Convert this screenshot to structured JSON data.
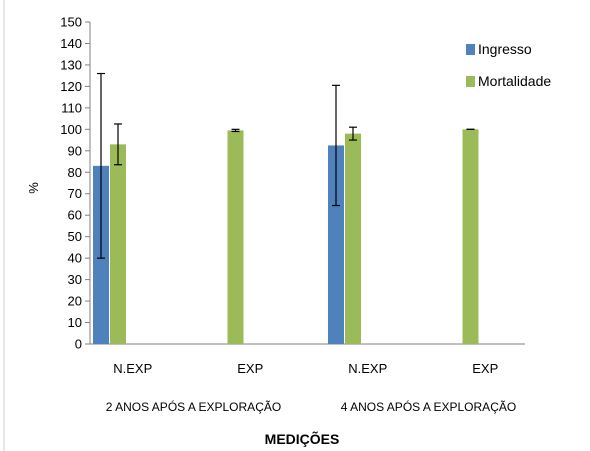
{
  "chart_data": {
    "type": "bar",
    "title": "",
    "xlabel": "MEDIÇÕES",
    "ylabel": "%",
    "ylim": [
      0,
      150
    ],
    "yticks": [
      0,
      10,
      20,
      30,
      40,
      50,
      60,
      70,
      80,
      90,
      100,
      110,
      120,
      130,
      140,
      150
    ],
    "grid": false,
    "legend_position": "top-right",
    "categories": [
      "N.EXP",
      "EXP",
      "N.EXP",
      "EXP"
    ],
    "groups": [
      {
        "label": "2 ANOS APÓS A EXPLORAÇÃO",
        "categories": [
          0,
          1
        ]
      },
      {
        "label": "4 ANOS APÓS A EXPLORAÇÃO",
        "categories": [
          2,
          3
        ]
      }
    ],
    "series": [
      {
        "name": "Ingresso",
        "color": "#4f81bd",
        "values": [
          83,
          null,
          92.5,
          null
        ],
        "error": [
          43,
          null,
          28,
          null
        ]
      },
      {
        "name": "Mortalidade",
        "color": "#9bbb59",
        "values": [
          93,
          99.5,
          98,
          100
        ],
        "error": [
          9.5,
          0.5,
          3,
          0
        ]
      }
    ]
  }
}
